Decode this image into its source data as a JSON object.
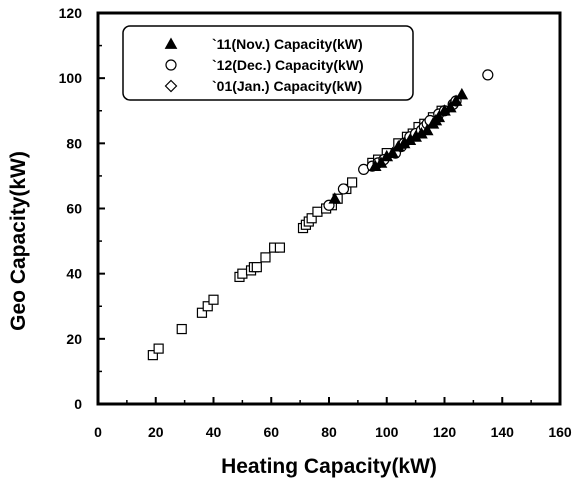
{
  "chart_data": {
    "type": "scatter",
    "xlabel": "Heating Capacity(kW)",
    "ylabel": "Geo Capacity(kW)",
    "xlim": [
      0,
      160
    ],
    "ylim": [
      0,
      120
    ],
    "xticks": [
      0,
      20,
      40,
      60,
      80,
      100,
      120,
      140,
      160
    ],
    "yticks": [
      0,
      20,
      40,
      60,
      80,
      100,
      120
    ],
    "grid": false,
    "legend_position": "top-left",
    "series": [
      {
        "name": "`11(Nov.) Capacity(kW)",
        "marker": "triangle-filled",
        "points": [
          [
            82,
            63
          ],
          [
            96,
            73
          ],
          [
            98,
            74
          ],
          [
            100,
            76
          ],
          [
            102,
            77
          ],
          [
            104,
            79
          ],
          [
            106,
            80
          ],
          [
            108,
            81
          ],
          [
            110,
            82
          ],
          [
            112,
            83
          ],
          [
            114,
            84
          ],
          [
            116,
            86
          ],
          [
            117,
            87
          ],
          [
            118,
            88
          ],
          [
            120,
            90
          ],
          [
            122,
            91
          ],
          [
            124,
            93
          ],
          [
            126,
            95
          ]
        ]
      },
      {
        "name": "`12(Dec.) Capacity(kW)",
        "marker": "circle-open",
        "points": [
          [
            80,
            61
          ],
          [
            85,
            66
          ],
          [
            92,
            72
          ],
          [
            95,
            73
          ],
          [
            97,
            74
          ],
          [
            99,
            75
          ],
          [
            103,
            77
          ],
          [
            105,
            79
          ],
          [
            106,
            80
          ],
          [
            108,
            82
          ],
          [
            110,
            83
          ],
          [
            112,
            84
          ],
          [
            113,
            85
          ],
          [
            114,
            86
          ],
          [
            115,
            87
          ],
          [
            118,
            89
          ],
          [
            120,
            90
          ],
          [
            123,
            92
          ],
          [
            124,
            93
          ],
          [
            135,
            101
          ]
        ]
      },
      {
        "name": "`01(Jan.) Capacity(kW)",
        "marker": "square-open",
        "points": [
          [
            19,
            15
          ],
          [
            21,
            17
          ],
          [
            29,
            23
          ],
          [
            36,
            28
          ],
          [
            38,
            30
          ],
          [
            40,
            32
          ],
          [
            49,
            39
          ],
          [
            50,
            40
          ],
          [
            53,
            41
          ],
          [
            54,
            42
          ],
          [
            55,
            42
          ],
          [
            58,
            45
          ],
          [
            61,
            48
          ],
          [
            63,
            48
          ],
          [
            71,
            54
          ],
          [
            72,
            55
          ],
          [
            73,
            56
          ],
          [
            74,
            57
          ],
          [
            76,
            59
          ],
          [
            79,
            60
          ],
          [
            81,
            61
          ],
          [
            83,
            63
          ],
          [
            86,
            66
          ],
          [
            88,
            68
          ],
          [
            95,
            74
          ],
          [
            97,
            75
          ],
          [
            100,
            77
          ],
          [
            104,
            80
          ],
          [
            107,
            82
          ],
          [
            109,
            83
          ],
          [
            111,
            85
          ],
          [
            113,
            86
          ],
          [
            116,
            88
          ],
          [
            119,
            90
          ]
        ]
      }
    ]
  }
}
